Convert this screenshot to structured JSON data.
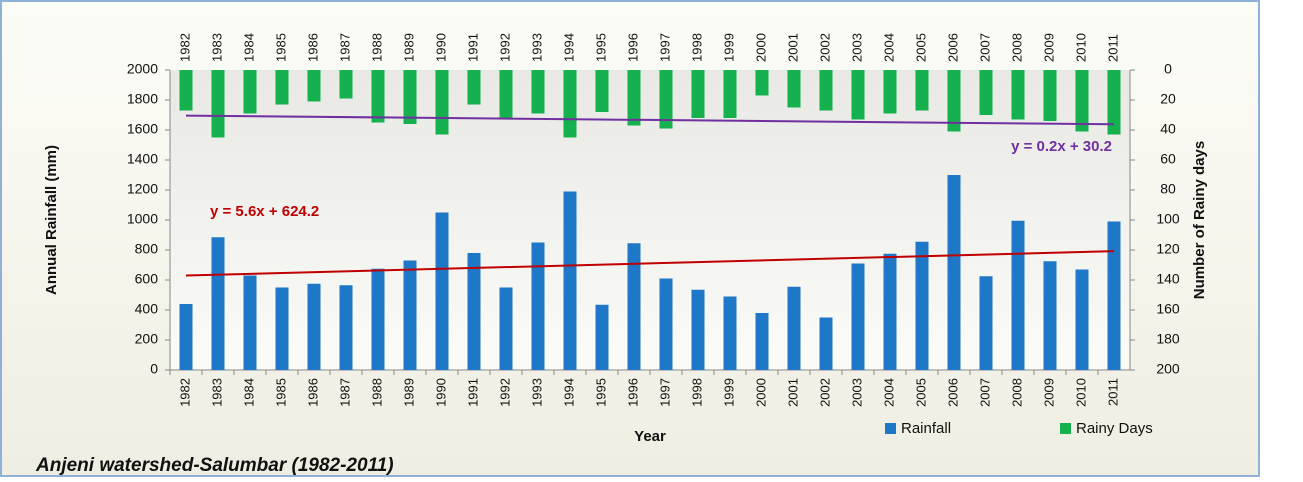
{
  "chart_data": {
    "type": "bar",
    "title": "Anjeni watershed-Salumbar (1982-2011)",
    "x_label": "Year",
    "y_label": "Annual Rainfall (mm)",
    "y2_label": "Number of Rainy days",
    "categories": [
      "1982",
      "1983",
      "1984",
      "1985",
      "1986",
      "1987",
      "1988",
      "1989",
      "1990",
      "1991",
      "1992",
      "1993",
      "1994",
      "1995",
      "1996",
      "1997",
      "1998",
      "1999",
      "2000",
      "2001",
      "2002",
      "2003",
      "2004",
      "2005",
      "2006",
      "2007",
      "2008",
      "2009",
      "2010",
      "2011"
    ],
    "series": [
      {
        "name": "Rainfall",
        "color": "#1f77c8",
        "axis": "y",
        "values": [
          440,
          885,
          630,
          550,
          575,
          565,
          675,
          730,
          1050,
          780,
          550,
          850,
          1190,
          435,
          845,
          610,
          535,
          490,
          380,
          555,
          350,
          710,
          775,
          855,
          1300,
          625,
          995,
          725,
          670,
          990
        ]
      },
      {
        "name": "Rainy Days",
        "color": "#16b14f",
        "axis": "y2",
        "values": [
          27,
          45,
          29,
          23,
          21,
          19,
          35,
          36,
          43,
          23,
          33,
          29,
          45,
          28,
          37,
          39,
          32,
          32,
          17,
          25,
          27,
          33,
          29,
          27,
          41,
          30,
          33,
          34,
          41,
          43
        ]
      }
    ],
    "trendlines": [
      {
        "label": "y = 5.6x + 624.2",
        "slope": 5.6,
        "intercept": 624.2,
        "color": "#c00000",
        "axis": "y"
      },
      {
        "label": "y = 0.2x + 30.2",
        "slope": 0.2,
        "intercept": 30.2,
        "color": "#7030a0",
        "axis": "y2"
      }
    ],
    "ylim": [
      0,
      2000
    ],
    "yticks": [
      0,
      200,
      400,
      600,
      800,
      1000,
      1200,
      1400,
      1600,
      1800,
      2000
    ],
    "y2lim": [
      0,
      200
    ],
    "y2ticks": [
      0,
      20,
      40,
      60,
      80,
      100,
      120,
      140,
      160,
      180,
      200
    ],
    "y2_inverted": true
  }
}
